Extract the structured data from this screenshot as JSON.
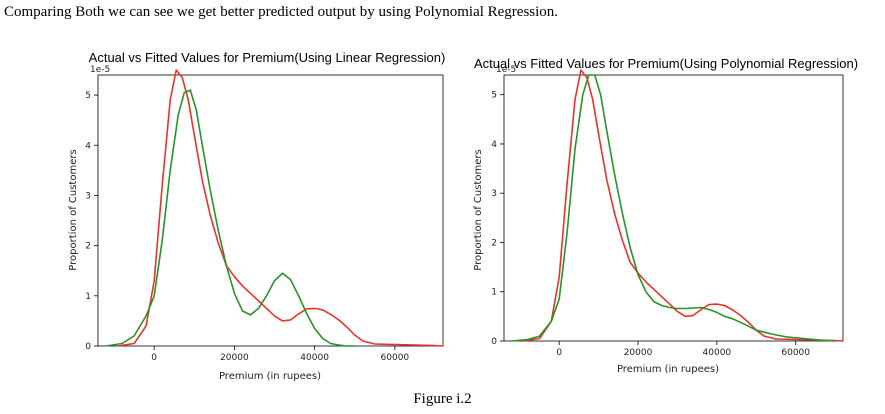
{
  "intro_text": "Comparing Both we can see we get better predicted output by using Polynomial Regression.",
  "figure_caption": "Figure i.2",
  "colors": {
    "actual": "#e8322a",
    "fitted": "#2a922a"
  },
  "chart_data": [
    {
      "type": "line",
      "title": "Actual vs Fitted Values for Premium(Using Linear Regression)",
      "xlabel": "Premium (in rupees)",
      "ylabel": "Proportion of Customers",
      "scale_label": "1e-5",
      "xlim": [
        -14000,
        72000
      ],
      "ylim": [
        0,
        5.4
      ],
      "xticks": [
        0,
        20000,
        40000,
        60000
      ],
      "xtick_labels": [
        "0",
        "20000",
        "40000",
        "60000"
      ],
      "yticks": [
        0,
        1,
        2,
        3,
        4,
        5
      ],
      "ytick_labels": [
        "0",
        "1",
        "2",
        "3",
        "4",
        "5"
      ],
      "series": [
        {
          "color": "#e8322a",
          "x": [
            -9000,
            -5000,
            -2000,
            0,
            2000,
            4000,
            5500,
            7000,
            8500,
            10000,
            12000,
            14000,
            16000,
            18000,
            20000,
            22000,
            24000,
            26000,
            28000,
            30000,
            32000,
            34000,
            36000,
            38000,
            40000,
            42000,
            44000,
            46000,
            48000,
            50000,
            52000,
            55000,
            60000,
            65000,
            70000,
            72000
          ],
          "y": [
            0.0,
            0.05,
            0.4,
            1.3,
            3.2,
            4.9,
            5.5,
            5.35,
            4.9,
            4.2,
            3.3,
            2.6,
            2.05,
            1.6,
            1.38,
            1.2,
            1.05,
            0.9,
            0.75,
            0.6,
            0.5,
            0.52,
            0.64,
            0.74,
            0.75,
            0.72,
            0.63,
            0.52,
            0.38,
            0.22,
            0.1,
            0.04,
            0.03,
            0.02,
            0.01,
            0.0
          ]
        },
        {
          "color": "#2a922a",
          "x": [
            -12000,
            -8000,
            -5000,
            -2000,
            0,
            2000,
            4000,
            6000,
            7500,
            9000,
            10500,
            12000,
            14000,
            16000,
            18000,
            20000,
            22000,
            24000,
            26000,
            28000,
            30000,
            32000,
            34000,
            36000,
            38000,
            40000,
            42000,
            44000,
            46000,
            48000,
            50000
          ],
          "y": [
            0.0,
            0.05,
            0.2,
            0.6,
            1.0,
            2.1,
            3.5,
            4.6,
            5.05,
            5.1,
            4.7,
            4.0,
            3.1,
            2.3,
            1.6,
            1.05,
            0.7,
            0.62,
            0.75,
            1.0,
            1.3,
            1.45,
            1.32,
            1.0,
            0.65,
            0.35,
            0.15,
            0.05,
            0.02,
            0.0,
            0.0
          ]
        }
      ]
    },
    {
      "type": "line",
      "title": "Actual vs Fitted Values for Premium(Using Polynomial Regression)",
      "xlabel": "Premium (in rupees)",
      "ylabel": "Proportion of Customers",
      "scale_label": "1e-5",
      "xlim": [
        -14000,
        72000
      ],
      "ylim": [
        0,
        5.4
      ],
      "xticks": [
        0,
        20000,
        40000,
        60000
      ],
      "xtick_labels": [
        "0",
        "20000",
        "40000",
        "60000"
      ],
      "yticks": [
        0,
        1,
        2,
        3,
        4,
        5
      ],
      "ytick_labels": [
        "0",
        "1",
        "2",
        "3",
        "4",
        "5"
      ],
      "series": [
        {
          "color": "#e8322a",
          "x": [
            -9000,
            -5000,
            -2000,
            0,
            2000,
            4000,
            5500,
            7000,
            8500,
            10000,
            12000,
            14000,
            16000,
            18000,
            20000,
            22000,
            24000,
            26000,
            28000,
            30000,
            32000,
            34000,
            36000,
            38000,
            40000,
            42000,
            44000,
            46000,
            48000,
            50000,
            52000,
            55000,
            60000,
            65000,
            70000,
            72000
          ],
          "y": [
            0.0,
            0.05,
            0.4,
            1.3,
            3.2,
            4.9,
            5.5,
            5.35,
            4.9,
            4.2,
            3.3,
            2.6,
            2.05,
            1.6,
            1.38,
            1.2,
            1.05,
            0.9,
            0.75,
            0.6,
            0.5,
            0.52,
            0.64,
            0.74,
            0.75,
            0.72,
            0.63,
            0.52,
            0.38,
            0.22,
            0.1,
            0.04,
            0.03,
            0.02,
            0.01,
            0.0
          ]
        },
        {
          "color": "#2a922a",
          "x": [
            -12000,
            -8000,
            -5000,
            -2000,
            0,
            2000,
            4000,
            6000,
            7500,
            9000,
            10500,
            12000,
            14000,
            16000,
            18000,
            20000,
            22000,
            24000,
            26000,
            28000,
            30000,
            32000,
            34000,
            36000,
            38000,
            40000,
            42000,
            44000,
            46000,
            48000,
            50000,
            54000,
            58000,
            62000,
            66000,
            70000
          ],
          "y": [
            0.0,
            0.03,
            0.1,
            0.4,
            0.85,
            2.2,
            3.9,
            5.0,
            5.4,
            5.4,
            5.0,
            4.3,
            3.4,
            2.6,
            1.9,
            1.35,
            1.0,
            0.8,
            0.72,
            0.68,
            0.66,
            0.66,
            0.67,
            0.68,
            0.64,
            0.58,
            0.5,
            0.45,
            0.38,
            0.3,
            0.22,
            0.14,
            0.08,
            0.05,
            0.02,
            0.0
          ]
        }
      ]
    }
  ]
}
